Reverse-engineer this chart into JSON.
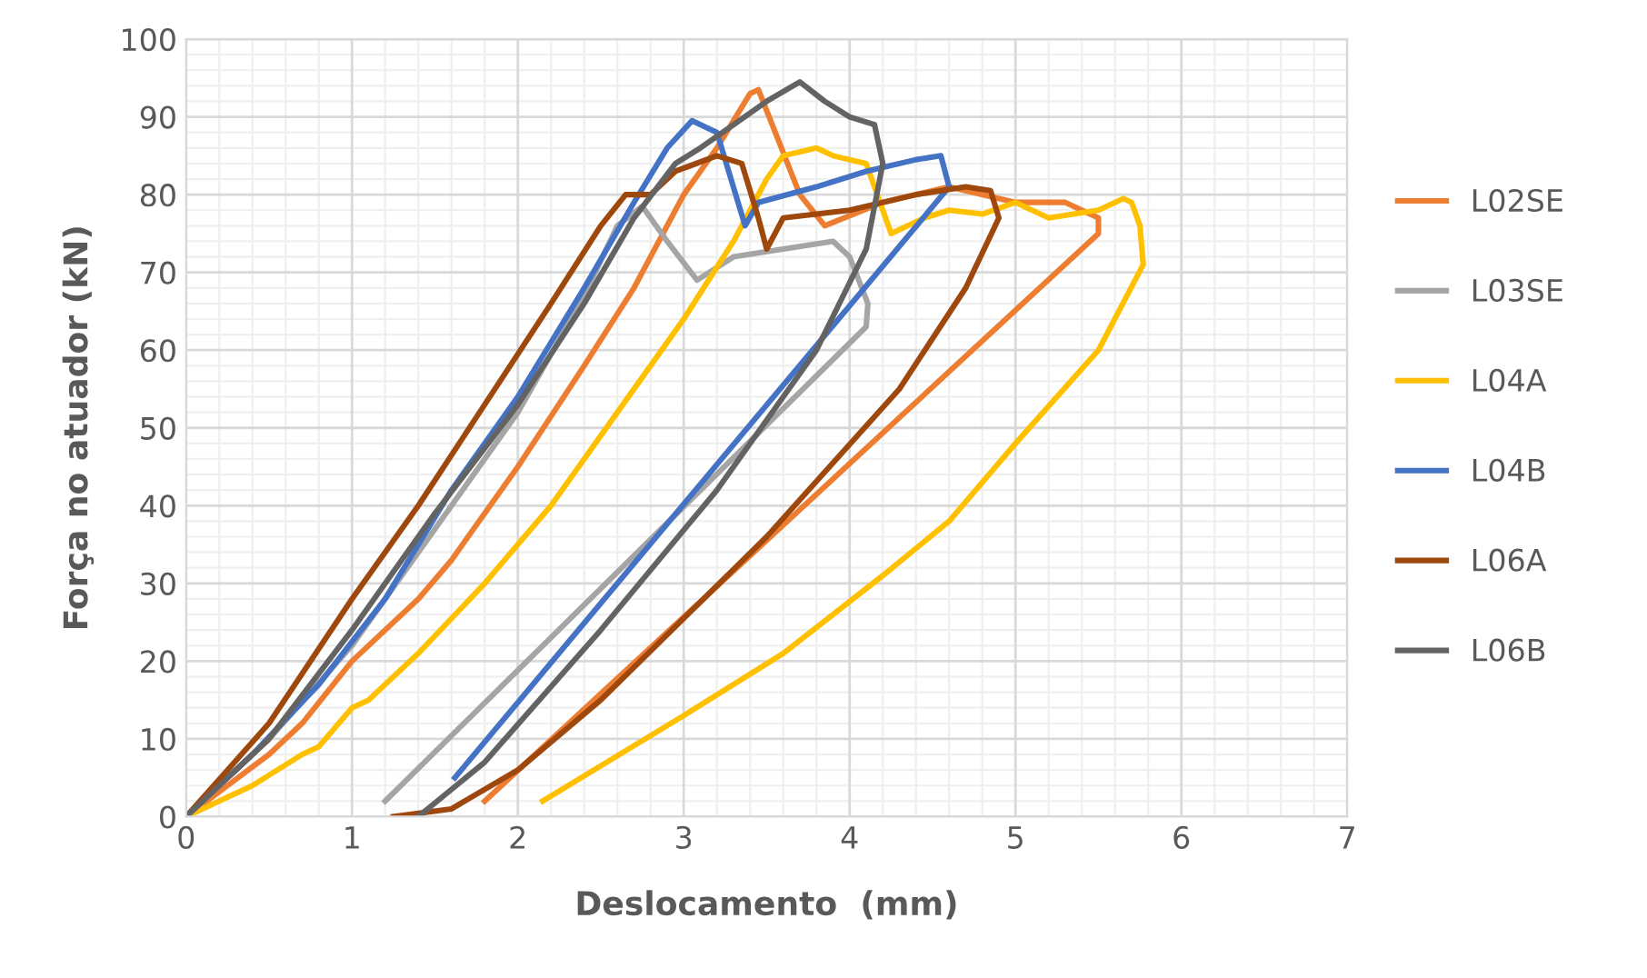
{
  "chart_data": {
    "type": "line",
    "xlabel": "Deslocamento  (mm)",
    "ylabel": "Força no atuador (kN)",
    "xlim": [
      0,
      7
    ],
    "ylim": [
      0,
      100
    ],
    "xticks": [
      0,
      1,
      2,
      3,
      4,
      5,
      6,
      7
    ],
    "yticks": [
      0,
      10,
      20,
      30,
      40,
      50,
      60,
      70,
      80,
      90,
      100
    ],
    "grid": true,
    "legend": "right",
    "marker": "none",
    "line_style": "solid",
    "series": [
      {
        "name": "L02SE",
        "color": "#ed7d31",
        "x": [
          0,
          0.5,
          0.7,
          1.0,
          1.4,
          1.6,
          2.0,
          2.4,
          2.7,
          3.0,
          3.2,
          3.4,
          3.45,
          3.7,
          3.85,
          4.2,
          4.6,
          5.0,
          5.3,
          5.5,
          5.5,
          1.8
        ],
        "values": [
          0,
          8,
          12,
          20,
          28,
          33,
          45,
          58,
          68,
          80,
          86,
          93,
          93.5,
          80,
          76,
          79,
          81,
          79,
          79,
          77,
          75,
          2
        ]
      },
      {
        "name": "L03SE",
        "color": "#a5a5a5",
        "x": [
          0,
          0.5,
          1.0,
          1.5,
          2.0,
          2.4,
          2.6,
          2.75,
          2.9,
          3.08,
          3.3,
          3.6,
          3.9,
          4.0,
          4.11,
          4.1,
          1.2
        ],
        "values": [
          0,
          10,
          22,
          37,
          52,
          67,
          76,
          78.5,
          74,
          69,
          72,
          73,
          74,
          72,
          66,
          63,
          2
        ]
      },
      {
        "name": "L04A",
        "color": "#ffc000",
        "x": [
          0,
          0.4,
          0.7,
          0.8,
          1.0,
          1.1,
          1.4,
          1.8,
          2.2,
          2.6,
          3.0,
          3.3,
          3.5,
          3.6,
          3.8,
          3.9,
          4.1,
          4.25,
          4.45,
          4.6,
          4.8,
          5.0,
          5.2,
          5.5,
          5.65,
          5.7,
          5.75,
          5.77,
          5.5,
          5.0,
          4.6,
          4.2,
          3.6,
          3.0,
          2.15
        ],
        "values": [
          0,
          4,
          8,
          9,
          14,
          15,
          21,
          30,
          40,
          52,
          64,
          74,
          82,
          85,
          86,
          85,
          84,
          75,
          77,
          78,
          77.5,
          79,
          77,
          78,
          79.5,
          79,
          76,
          71,
          60,
          48,
          38,
          31,
          21,
          13,
          2
        ]
      },
      {
        "name": "L04B",
        "color": "#4472c4",
        "x": [
          0,
          0.4,
          0.8,
          1.2,
          1.6,
          2.0,
          2.4,
          2.7,
          2.9,
          3.05,
          3.2,
          3.37,
          3.45,
          3.8,
          4.1,
          4.4,
          4.55,
          4.6,
          1.62
        ],
        "values": [
          0,
          8,
          17,
          28,
          42,
          54,
          68,
          79,
          86,
          89.5,
          88,
          76,
          79,
          81,
          83,
          84.5,
          85,
          81,
          5
        ]
      },
      {
        "name": "L06A",
        "color": "#9e480e",
        "x": [
          0,
          0.5,
          1.0,
          1.4,
          1.8,
          2.2,
          2.5,
          2.65,
          2.8,
          2.95,
          3.2,
          3.35,
          3.45,
          3.5,
          3.6,
          4.0,
          4.4,
          4.7,
          4.85,
          4.9,
          4.7,
          4.3,
          3.5,
          2.5,
          2.0,
          1.6,
          1.25
        ],
        "values": [
          0,
          12,
          28,
          40,
          53,
          66,
          76,
          80,
          80,
          83,
          85,
          84,
          77,
          73,
          77,
          78,
          80,
          81,
          80.5,
          77,
          68,
          55,
          36,
          15,
          6,
          1,
          0
        ]
      },
      {
        "name": "L06B",
        "color": "#636363",
        "x": [
          0,
          0.5,
          1.0,
          1.5,
          2.0,
          2.4,
          2.7,
          2.95,
          3.1,
          3.3,
          3.5,
          3.7,
          3.85,
          4.0,
          4.15,
          4.2,
          4.1,
          3.8,
          3.2,
          2.5,
          1.8,
          1.4
        ],
        "values": [
          0,
          10,
          24,
          39,
          53,
          66,
          77,
          84,
          86,
          89,
          92,
          94.5,
          92,
          90,
          89,
          84,
          73,
          60,
          42,
          24,
          7,
          0
        ]
      }
    ]
  }
}
